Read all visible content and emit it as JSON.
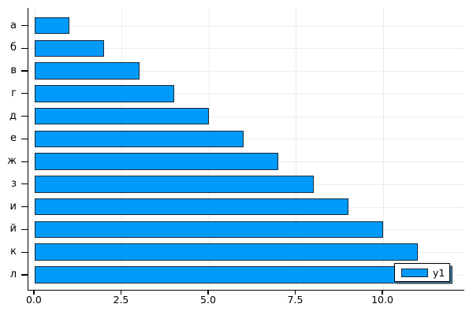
{
  "chart_data": {
    "type": "bar",
    "orientation": "horizontal",
    "title": "",
    "xlabel": "",
    "ylabel": "",
    "categories": [
      "а",
      "б",
      "в",
      "г",
      "д",
      "е",
      "ж",
      "з",
      "и",
      "й",
      "к",
      "л"
    ],
    "values": [
      1,
      2,
      3,
      4,
      5,
      6,
      7,
      8,
      9,
      10,
      11,
      12
    ],
    "series_name": "y1",
    "xticks": [
      0,
      2.5,
      5,
      7.5,
      10
    ],
    "xtick_labels": [
      "0.0",
      "2.5",
      "5.0",
      "7.5",
      "10.0"
    ],
    "xlim": [
      -0.18,
      12.33
    ],
    "grid": true,
    "legend_position": "bottom-right",
    "colors": {
      "bar_fill": "#009AFA",
      "bar_stroke": "#1b2a35",
      "axis": "#000000",
      "grid": "#ececec",
      "background": "#ffffff",
      "legend_border": "#000000"
    }
  }
}
